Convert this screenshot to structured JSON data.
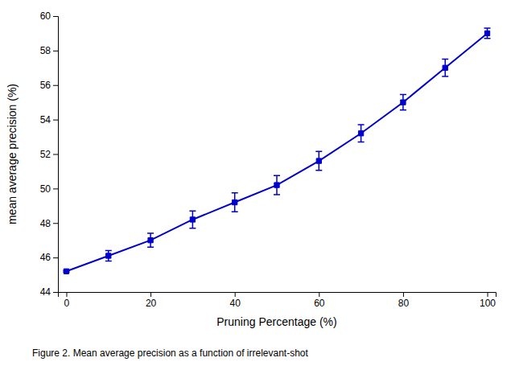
{
  "chart_data": {
    "type": "line",
    "xlabel": "Pruning Percentage (%)",
    "ylabel": "mean average precision (%)",
    "caption": "Figure 2. Mean average precision as a function of irrelevant-shot",
    "x": [
      0,
      10,
      20,
      30,
      40,
      50,
      60,
      70,
      80,
      90,
      100
    ],
    "values": [
      45.2,
      46.1,
      47.0,
      48.2,
      49.2,
      50.2,
      51.6,
      53.2,
      55.0,
      57.0,
      59.0
    ],
    "yerr": [
      0.05,
      0.3,
      0.4,
      0.5,
      0.55,
      0.55,
      0.55,
      0.5,
      0.45,
      0.5,
      0.3
    ],
    "color": "#0000CC",
    "marker": "square",
    "grid": false,
    "xlim": [
      -2,
      102
    ],
    "ylim": [
      44,
      60
    ],
    "xticks": [
      0,
      20,
      40,
      60,
      80,
      100
    ],
    "yticks": [
      44,
      46,
      48,
      50,
      52,
      54,
      56,
      58,
      60
    ]
  }
}
